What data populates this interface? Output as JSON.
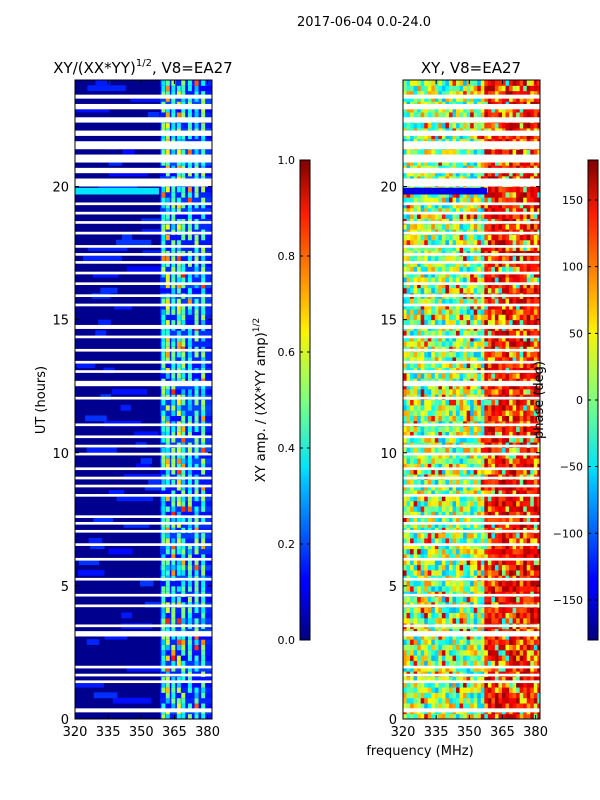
{
  "suptitle": "2017-06-04 0.0-24.0",
  "xlabel_shared": "frequency (MHz)",
  "colors": {
    "gap": "#ffffff",
    "background_amp": "#00008f",
    "frame": "#000000"
  },
  "chart_data": [
    {
      "type": "heatmap",
      "title_main": "XY/(XX*YY)",
      "title_sup": "1/2",
      "title_tail": ", V8=EA27",
      "ylabel": "UT (hours)",
      "xlim": [
        320,
        382
      ],
      "ylim": [
        0,
        24
      ],
      "xticks": [
        320,
        335,
        350,
        365,
        380
      ],
      "xtick_labels": [
        "320",
        "335",
        "350",
        "365",
        "380"
      ],
      "yticks": [
        0,
        5,
        10,
        15,
        20
      ],
      "ytick_labels": [
        "0",
        "5",
        "10",
        "15",
        "20"
      ],
      "description_bands": "Low amplitude (~0.05) below ~359 MHz; broken vertical features of amplitude 0.3-0.7 between 359 and 382 MHz",
      "feature_columns_mhz": [
        360,
        362,
        364.5,
        367,
        369,
        372,
        375,
        378
      ],
      "colorbar": {
        "label_main": "XY amp. / (XX*YY amp)",
        "label_sup": "1/2",
        "range": [
          0.0,
          1.0
        ],
        "ticks": [
          0.0,
          0.2,
          0.4,
          0.6,
          0.8,
          1.0
        ],
        "tick_labels": [
          "0.0",
          "0.2",
          "0.4",
          "0.6",
          "0.8",
          "1.0"
        ]
      }
    },
    {
      "type": "heatmap",
      "title_main": "XY, V8=EA27",
      "xlim": [
        320,
        382
      ],
      "ylim": [
        0,
        24
      ],
      "xticks": [
        320,
        335,
        350,
        365,
        380
      ],
      "xtick_labels": [
        "320",
        "335",
        "350",
        "365",
        "380"
      ],
      "yticks": [
        0,
        5,
        10,
        15,
        20
      ],
      "ytick_labels": [
        "0",
        "5",
        "10",
        "15",
        "20"
      ],
      "description_bands": "Noisy phase (cyan/yellow/green) below ~356 MHz; red/orange (~100-180 deg) structured region 356-382 MHz",
      "colorbar": {
        "label": "phase (deg)",
        "range": [
          -180,
          180
        ],
        "ticks": [
          -150,
          -100,
          -50,
          0,
          50,
          100,
          150
        ],
        "tick_labels": [
          "−150",
          "−100",
          "−50",
          "0",
          "50",
          "100",
          "150"
        ]
      }
    }
  ],
  "data_gaps_hours": [
    [
      0.25,
      0.4
    ],
    [
      1.35,
      1.45
    ],
    [
      1.6,
      1.7
    ],
    [
      1.9,
      2.0
    ],
    [
      3.1,
      3.3
    ],
    [
      3.45,
      3.55
    ],
    [
      4.2,
      4.3
    ],
    [
      4.6,
      4.7
    ],
    [
      5.2,
      5.3
    ],
    [
      5.95,
      6.05
    ],
    [
      6.5,
      6.6
    ],
    [
      7.0,
      7.1
    ],
    [
      7.3,
      7.4
    ],
    [
      7.55,
      7.65
    ],
    [
      8.35,
      8.45
    ],
    [
      8.7,
      8.8
    ],
    [
      9.0,
      9.1
    ],
    [
      9.35,
      9.45
    ],
    [
      9.9,
      10.0
    ],
    [
      10.2,
      10.3
    ],
    [
      10.55,
      10.65
    ],
    [
      11.0,
      11.1
    ],
    [
      12.0,
      12.1
    ],
    [
      12.5,
      12.7
    ],
    [
      13.0,
      13.1
    ],
    [
      13.35,
      13.45
    ],
    [
      13.8,
      13.9
    ],
    [
      14.3,
      14.4
    ],
    [
      14.65,
      14.8
    ],
    [
      15.5,
      15.6
    ],
    [
      15.85,
      15.95
    ],
    [
      16.3,
      16.4
    ],
    [
      16.7,
      16.8
    ],
    [
      17.1,
      17.2
    ],
    [
      17.4,
      17.5
    ],
    [
      17.7,
      17.8
    ],
    [
      18.2,
      18.3
    ],
    [
      18.6,
      18.7
    ],
    [
      18.95,
      19.05
    ],
    [
      19.3,
      19.4
    ],
    [
      20.0,
      20.3
    ],
    [
      20.5,
      20.7
    ],
    [
      20.9,
      21.2
    ],
    [
      21.4,
      21.7
    ],
    [
      21.9,
      22.1
    ],
    [
      22.4,
      22.6
    ],
    [
      22.9,
      23.1
    ],
    [
      23.3,
      23.45
    ]
  ]
}
